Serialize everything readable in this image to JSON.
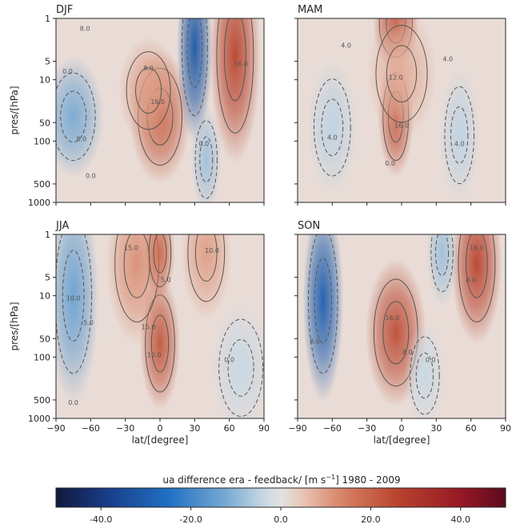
{
  "chart_data": {
    "type": "heatmap",
    "colorbar": {
      "label_main": "ua difference era - feedback/ [m s",
      "label_sup": "−1",
      "label_end": "]  1980 - 2009",
      "range": [
        -50,
        50
      ],
      "ticks": [
        "-40.0",
        "-20.0",
        "0.0",
        "20.0",
        "40.0"
      ],
      "tick_values": [
        -40,
        -20,
        0,
        20,
        40
      ]
    },
    "x_ticks": [
      "−90",
      "−60",
      "−30",
      "0",
      "30",
      "60",
      "90"
    ],
    "x_values": [
      -90,
      -60,
      -30,
      0,
      30,
      60,
      90
    ],
    "y_ticks": [
      "1",
      "5",
      "10",
      "50",
      "100",
      "500",
      "1000"
    ],
    "y_values": [
      1,
      5,
      10,
      50,
      100,
      500,
      1000
    ],
    "xlabel": "lat/[degree]",
    "ylabel": "pres/[hPa]",
    "yscale": "log",
    "panels": [
      {
        "title": "DJF",
        "features": [
          {
            "lat": -75,
            "p": 40,
            "val": -12,
            "sx": 12,
            "sy": 0.45
          },
          {
            "lat": 0,
            "p": 40,
            "val": 20,
            "sx": 12,
            "sy": 0.5
          },
          {
            "lat": -10,
            "p": 15,
            "val": 10,
            "sx": 12,
            "sy": 0.4
          },
          {
            "lat": 30,
            "p": 3,
            "val": -32,
            "sx": 7,
            "sy": 0.7
          },
          {
            "lat": 40,
            "p": 200,
            "val": -8,
            "sx": 6,
            "sy": 0.4
          },
          {
            "lat": 65,
            "p": 4,
            "val": 26,
            "sx": 10,
            "sy": 0.8
          }
        ],
        "contour_labels": [
          {
            "text": "8.0",
            "lat": -65,
            "p": 1.6
          },
          {
            "text": "0.0",
            "lat": -80,
            "p": 8
          },
          {
            "text": "8.0",
            "lat": -68,
            "p": 100
          },
          {
            "text": "16.0",
            "lat": -2,
            "p": 25
          },
          {
            "text": "8.0",
            "lat": -10,
            "p": 7
          },
          {
            "text": "16.0",
            "lat": 70,
            "p": 6
          },
          {
            "text": "0.0",
            "lat": 38,
            "p": 120
          },
          {
            "text": "0.0",
            "lat": -60,
            "p": 400
          }
        ]
      },
      {
        "title": "MAM",
        "features": [
          {
            "lat": -5,
            "p": 1.2,
            "val": 24,
            "sx": 9,
            "sy": 0.35
          },
          {
            "lat": -5,
            "p": 40,
            "val": 22,
            "sx": 7,
            "sy": 0.45
          },
          {
            "lat": 0,
            "p": 8,
            "val": 8,
            "sx": 14,
            "sy": 0.5
          },
          {
            "lat": -60,
            "p": 60,
            "val": -5,
            "sx": 10,
            "sy": 0.5
          },
          {
            "lat": 50,
            "p": 80,
            "val": -5,
            "sx": 8,
            "sy": 0.5
          }
        ],
        "contour_labels": [
          {
            "text": "4.0",
            "lat": -48,
            "p": 3
          },
          {
            "text": "4.0",
            "lat": 40,
            "p": 5
          },
          {
            "text": "4.0",
            "lat": -60,
            "p": 95
          },
          {
            "text": "4.0",
            "lat": 50,
            "p": 120
          },
          {
            "text": "12.0",
            "lat": -5,
            "p": 10
          },
          {
            "text": "16.0",
            "lat": 0,
            "p": 60
          },
          {
            "text": "0.0",
            "lat": -10,
            "p": 250
          }
        ]
      },
      {
        "title": "JJA",
        "features": [
          {
            "lat": -75,
            "p": 10,
            "val": -14,
            "sx": 10,
            "sy": 0.8
          },
          {
            "lat": 0,
            "p": 60,
            "val": 22,
            "sx": 8,
            "sy": 0.5
          },
          {
            "lat": -20,
            "p": 3,
            "val": 12,
            "sx": 12,
            "sy": 0.6
          },
          {
            "lat": 0,
            "p": 2,
            "val": 18,
            "sx": 6,
            "sy": 0.35
          },
          {
            "lat": 40,
            "p": 2,
            "val": 10,
            "sx": 10,
            "sy": 0.5
          },
          {
            "lat": 70,
            "p": 150,
            "val": -4,
            "sx": 12,
            "sy": 0.5
          }
        ],
        "contour_labels": [
          {
            "text": "15.0",
            "lat": -25,
            "p": 1.8
          },
          {
            "text": "10.0",
            "lat": -75,
            "p": 12
          },
          {
            "text": "5.0",
            "lat": -62,
            "p": 30
          },
          {
            "text": "5.0",
            "lat": 5,
            "p": 6
          },
          {
            "text": "15.0",
            "lat": -10,
            "p": 35
          },
          {
            "text": "10.0",
            "lat": -5,
            "p": 100
          },
          {
            "text": "10.0",
            "lat": 45,
            "p": 2
          },
          {
            "text": "0.0",
            "lat": 60,
            "p": 120
          },
          {
            "text": "0.0",
            "lat": -75,
            "p": 600
          }
        ]
      },
      {
        "title": "SON",
        "features": [
          {
            "lat": -68,
            "p": 12,
            "val": -30,
            "sx": 8,
            "sy": 0.75
          },
          {
            "lat": -5,
            "p": 40,
            "val": 24,
            "sx": 12,
            "sy": 0.55
          },
          {
            "lat": 65,
            "p": 3,
            "val": 26,
            "sx": 10,
            "sy": 0.6
          },
          {
            "lat": 35,
            "p": 2,
            "val": -8,
            "sx": 6,
            "sy": 0.4
          },
          {
            "lat": 20,
            "p": 200,
            "val": -4,
            "sx": 8,
            "sy": 0.4
          }
        ],
        "contour_labels": [
          {
            "text": "16.0",
            "lat": -8,
            "p": 25
          },
          {
            "text": "8.0",
            "lat": 5,
            "p": 90
          },
          {
            "text": "8.0",
            "lat": -75,
            "p": 60
          },
          {
            "text": "16.0",
            "lat": 65,
            "p": 1.8
          },
          {
            "text": "8.0",
            "lat": 60,
            "p": 6
          },
          {
            "text": "0.0",
            "lat": 25,
            "p": 120
          }
        ]
      }
    ]
  }
}
